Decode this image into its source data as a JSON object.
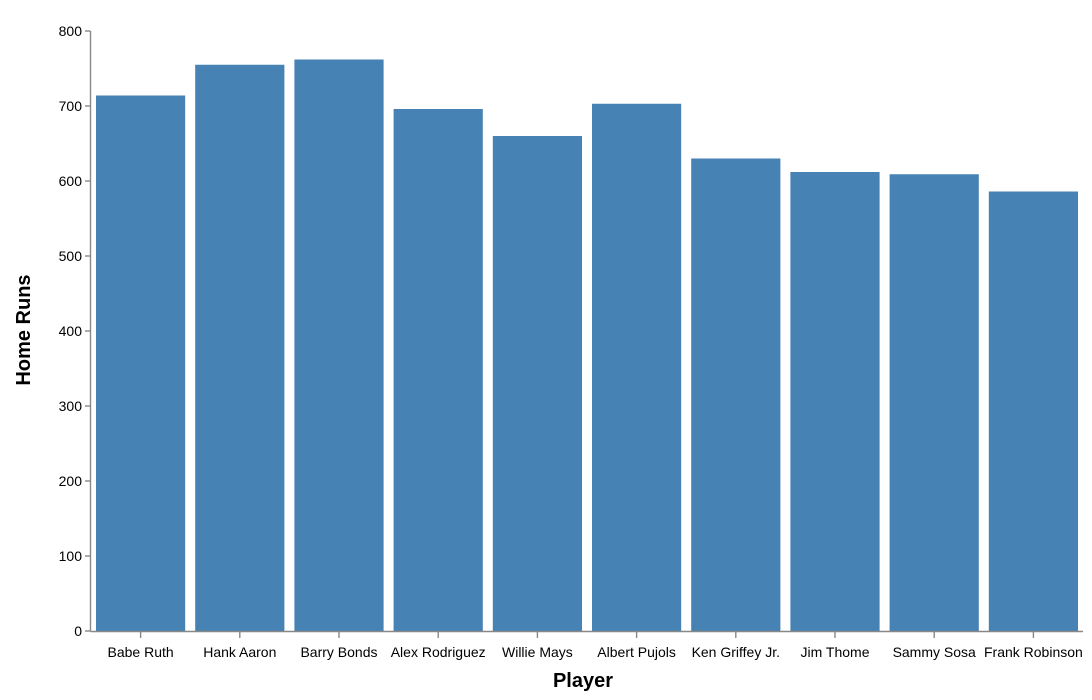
{
  "chart_data": {
    "type": "bar",
    "categories": [
      "Babe Ruth",
      "Hank Aaron",
      "Barry Bonds",
      "Alex Rodriguez",
      "Willie Mays",
      "Albert Pujols",
      "Ken Griffey Jr.",
      "Jim Thome",
      "Sammy Sosa",
      "Frank Robinson"
    ],
    "values": [
      714,
      755,
      762,
      696,
      660,
      703,
      630,
      612,
      609,
      586
    ],
    "xlabel": "Player",
    "ylabel": "Home Runs",
    "ylim": [
      0,
      800
    ],
    "yticks": [
      0,
      100,
      200,
      300,
      400,
      500,
      600,
      700,
      800
    ],
    "grid": false,
    "bar_color": "#4682b4",
    "axis_color": "#888888"
  }
}
